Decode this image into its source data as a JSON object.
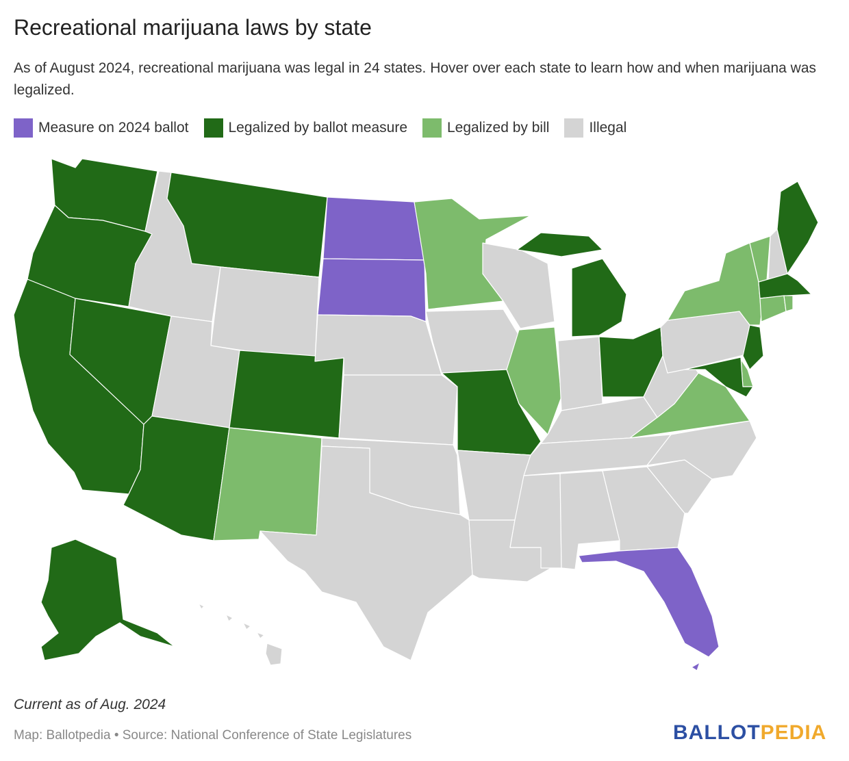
{
  "title": "Recreational marijuana laws by state",
  "subtitle": "As of August 2024, recreational marijuana was legal in 24 states. Hover over each state to learn how and when marijuana was legalized.",
  "legend": [
    {
      "label": "Measure on 2024 ballot",
      "color": "#7e63c8"
    },
    {
      "label": "Legalized by ballot measure",
      "color": "#216a17"
    },
    {
      "label": "Legalized by bill",
      "color": "#7dbb6c"
    },
    {
      "label": "Illegal",
      "color": "#d4d4d4"
    }
  ],
  "colors": {
    "ballot2024": "#7e63c8",
    "ballot": "#216a17",
    "bill": "#7dbb6c",
    "illegal": "#d4d4d4"
  },
  "states": {
    "WA": "ballot",
    "OR": "ballot",
    "CA": "ballot",
    "NV": "ballot",
    "ID": "illegal",
    "MT": "ballot",
    "WY": "illegal",
    "UT": "illegal",
    "AZ": "ballot",
    "CO": "ballot",
    "NM": "bill",
    "ND": "ballot2024",
    "SD": "ballot2024",
    "NE": "illegal",
    "KS": "illegal",
    "OK": "illegal",
    "TX": "illegal",
    "MN": "bill",
    "IA": "illegal",
    "MO": "ballot",
    "AR": "illegal",
    "LA": "illegal",
    "WI": "illegal",
    "IL": "bill",
    "MI": "ballot",
    "IN": "illegal",
    "OH": "ballot",
    "KY": "illegal",
    "TN": "illegal",
    "MS": "illegal",
    "AL": "illegal",
    "GA": "illegal",
    "FL": "ballot2024",
    "SC": "illegal",
    "NC": "illegal",
    "VA": "bill",
    "WV": "illegal",
    "PA": "illegal",
    "NY": "bill",
    "VT": "bill",
    "NH": "illegal",
    "ME": "ballot",
    "MA": "ballot",
    "CT": "bill",
    "RI": "bill",
    "NJ": "ballot",
    "DE": "bill",
    "MD": "ballot",
    "AK": "ballot",
    "HI": "illegal"
  },
  "note": "Current as of Aug. 2024",
  "source": "Map: Ballotpedia • Source: National Conference of State Legislatures",
  "logo": {
    "part1": "BALLOT",
    "part2": "PEDIA"
  }
}
